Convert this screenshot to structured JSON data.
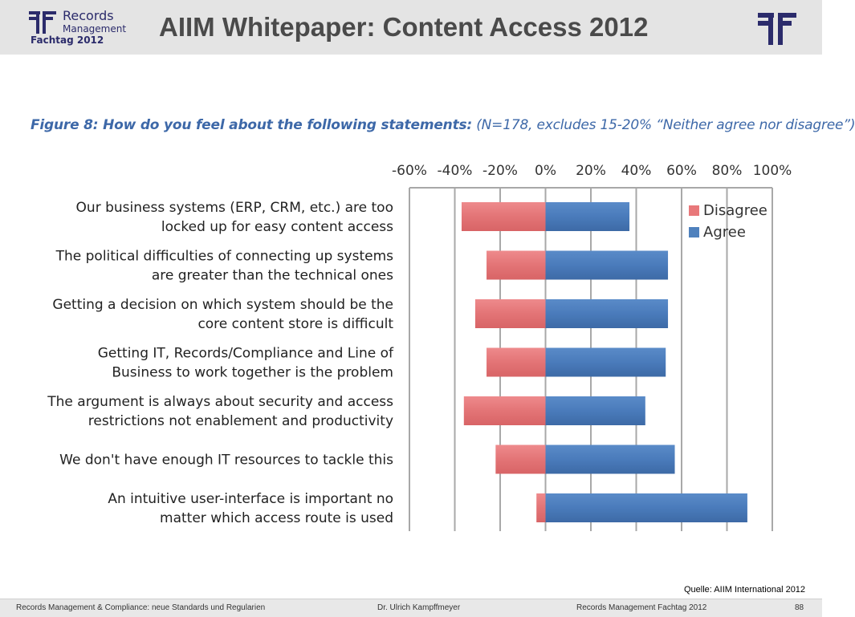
{
  "header": {
    "logo_line1": "Records",
    "logo_line2": "Management",
    "logo_line3": "Fachtag 2012",
    "title": "AIIM Whitepaper: Content Access 2012"
  },
  "figure": {
    "title_bold": "Figure 8: How do you feel about the following statements:",
    "title_rest": " (N=178, excludes 15-20% “Neither agree nor disagree”)"
  },
  "chart_data": {
    "type": "bar",
    "orientation": "horizontal-diverging",
    "categories": [
      [
        "Our business systems (ERP, CRM, etc.) are too",
        "locked up for easy content access"
      ],
      [
        "The political difficulties of connecting up systems",
        "are greater than the technical ones"
      ],
      [
        "Getting a decision on which system should be the",
        "core content store is difficult"
      ],
      [
        "Getting  IT, Records/Compliance and Line of",
        "Business to work together is the problem"
      ],
      [
        "The argument is always about security and access",
        "restrictions not enablement and productivity"
      ],
      [
        "We don't have enough IT resources to tackle this"
      ],
      [
        "An intuitive user-interface  is important no",
        "matter which access route is used"
      ]
    ],
    "series": [
      {
        "name": "Disagree",
        "color": "#e8787a",
        "values": [
          -37,
          -26,
          -31,
          -26,
          -36,
          -22,
          -4
        ]
      },
      {
        "name": "Agree",
        "color": "#4f81bd",
        "values": [
          37,
          54,
          54,
          53,
          44,
          57,
          89
        ]
      }
    ],
    "xticks": [
      "-60%",
      "-40%",
      "-20%",
      "0%",
      "20%",
      "40%",
      "60%",
      "80%",
      "100%"
    ],
    "xlim": [
      -60,
      100
    ],
    "grid": true,
    "legend": "top-right"
  },
  "source": "Quelle: AIIM International 2012",
  "footer": {
    "left": "Records Management & Compliance: neue Standards und Regularien",
    "center": "Dr. Ulrich Kampffmeyer",
    "right": "Records Management Fachtag 2012",
    "page": "88"
  }
}
